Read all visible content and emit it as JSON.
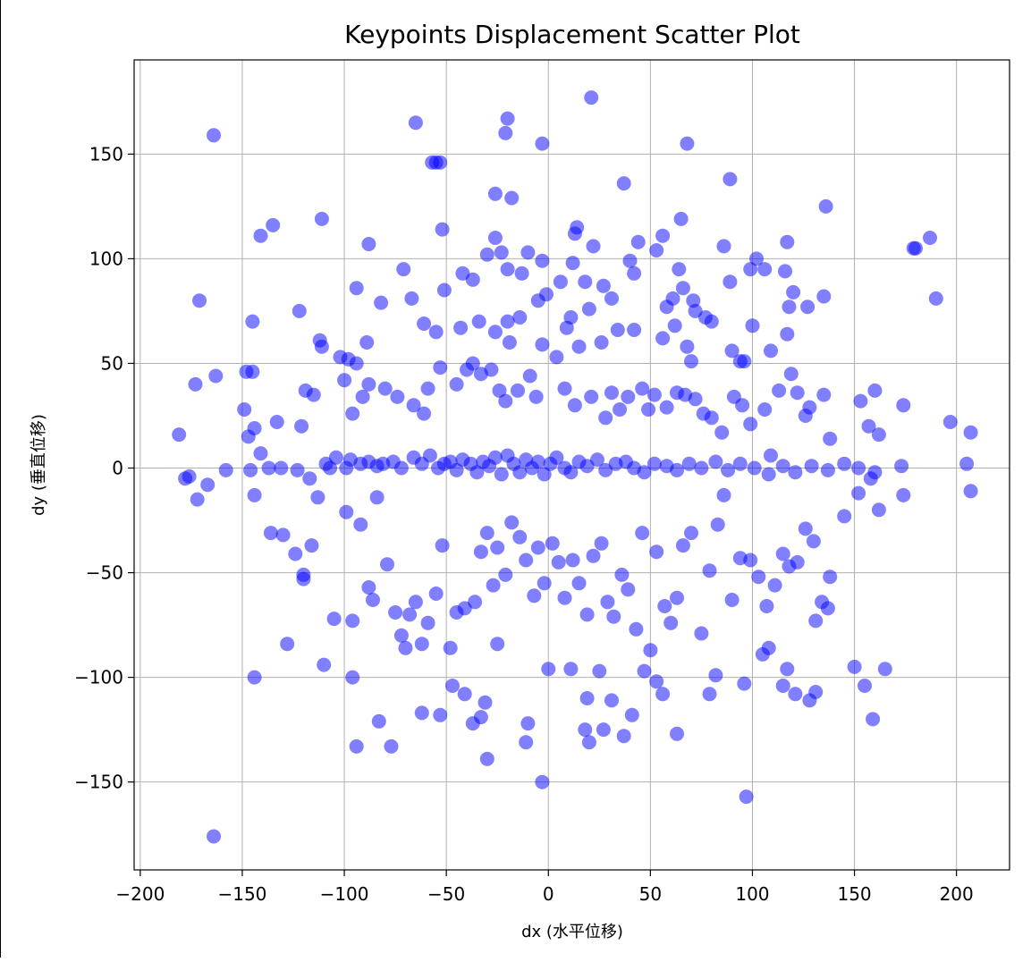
{
  "chart_data": {
    "type": "scatter",
    "title": "Keypoints Displacement Scatter Plot",
    "xlabel": "dx (水平位移)",
    "ylabel": "dy (垂直位移)",
    "xlim": [
      -203,
      226
    ],
    "ylim": [
      -192,
      195
    ],
    "xticks": [
      -200,
      -150,
      -100,
      -50,
      0,
      50,
      100,
      150,
      200
    ],
    "yticks": [
      -150,
      -100,
      -50,
      0,
      50,
      100,
      150
    ],
    "xtick_labels": [
      "−200",
      "−150",
      "−100",
      "−50",
      "0",
      "50",
      "100",
      "150",
      "200"
    ],
    "ytick_labels": [
      "−150",
      "−100",
      "−50",
      "0",
      "50",
      "100",
      "150"
    ],
    "grid": true,
    "marker_color": "#0000ff",
    "marker_alpha": 0.5,
    "points": [
      [
        -164,
        159
      ],
      [
        -65,
        165
      ],
      [
        -20,
        167
      ],
      [
        -21,
        160
      ],
      [
        -3,
        155
      ],
      [
        21,
        177
      ],
      [
        -57,
        146
      ],
      [
        -55,
        146
      ],
      [
        -53,
        146
      ],
      [
        -26,
        131
      ],
      [
        -18,
        129
      ],
      [
        37,
        136
      ],
      [
        68,
        155
      ],
      [
        89,
        138
      ],
      [
        136,
        125
      ],
      [
        -111,
        119
      ],
      [
        -135,
        116
      ],
      [
        -141,
        111
      ],
      [
        -88,
        107
      ],
      [
        -52,
        114
      ],
      [
        14,
        115
      ],
      [
        13,
        112
      ],
      [
        22,
        106
      ],
      [
        44,
        108
      ],
      [
        56,
        111
      ],
      [
        65,
        119
      ],
      [
        117,
        108
      ],
      [
        135,
        82
      ],
      [
        187,
        110
      ],
      [
        179,
        105
      ],
      [
        180,
        105
      ],
      [
        190,
        81
      ],
      [
        -171,
        80
      ],
      [
        -122,
        75
      ],
      [
        -94,
        86
      ],
      [
        -71,
        95
      ],
      [
        -67,
        81
      ],
      [
        -51,
        85
      ],
      [
        -42,
        93
      ],
      [
        -37,
        90
      ],
      [
        -26,
        110
      ],
      [
        -30,
        102
      ],
      [
        -23,
        103
      ],
      [
        -20,
        95
      ],
      [
        -13,
        93
      ],
      [
        -10,
        103
      ],
      [
        -3,
        99
      ],
      [
        -1,
        83
      ],
      [
        -5,
        80
      ],
      [
        6,
        89
      ],
      [
        12,
        98
      ],
      [
        18,
        89
      ],
      [
        27,
        87
      ],
      [
        20,
        76
      ],
      [
        31,
        81
      ],
      [
        40,
        99
      ],
      [
        42,
        93
      ],
      [
        53,
        104
      ],
      [
        58,
        77
      ],
      [
        61,
        81
      ],
      [
        64,
        95
      ],
      [
        66,
        86
      ],
      [
        71,
        80
      ],
      [
        72,
        75
      ],
      [
        77,
        72
      ],
      [
        80,
        70
      ],
      [
        86,
        106
      ],
      [
        89,
        89
      ],
      [
        96,
        51
      ],
      [
        99,
        95
      ],
      [
        102,
        100
      ],
      [
        106,
        95
      ],
      [
        116,
        94
      ],
      [
        118,
        77
      ],
      [
        120,
        84
      ],
      [
        127,
        77
      ],
      [
        -145,
        70
      ],
      [
        -112,
        61
      ],
      [
        -111,
        58
      ],
      [
        -89,
        60
      ],
      [
        -82,
        79
      ],
      [
        -61,
        69
      ],
      [
        -55,
        65
      ],
      [
        -43,
        67
      ],
      [
        -37,
        50
      ],
      [
        -34,
        70
      ],
      [
        -26,
        65
      ],
      [
        -20,
        70
      ],
      [
        -14,
        72
      ],
      [
        -19,
        60
      ],
      [
        -3,
        59
      ],
      [
        4,
        53
      ],
      [
        9,
        67
      ],
      [
        11,
        72
      ],
      [
        15,
        58
      ],
      [
        26,
        60
      ],
      [
        34,
        66
      ],
      [
        42,
        66
      ],
      [
        56,
        62
      ],
      [
        62,
        68
      ],
      [
        68,
        58
      ],
      [
        70,
        51
      ],
      [
        90,
        56
      ],
      [
        94,
        51
      ],
      [
        100,
        68
      ],
      [
        109,
        56
      ],
      [
        117,
        64
      ],
      [
        -148,
        46
      ],
      [
        -163,
        44
      ],
      [
        -173,
        40
      ],
      [
        -145,
        46
      ],
      [
        -144,
        19
      ],
      [
        -147,
        15
      ],
      [
        -149,
        28
      ],
      [
        -141,
        7
      ],
      [
        -137,
        0
      ],
      [
        -133,
        22
      ],
      [
        -119,
        37
      ],
      [
        -115,
        35
      ],
      [
        -121,
        20
      ],
      [
        -102,
        53
      ],
      [
        -100,
        42
      ],
      [
        -98,
        52
      ],
      [
        -96,
        26
      ],
      [
        -94,
        50
      ],
      [
        -91,
        34
      ],
      [
        -88,
        40
      ],
      [
        -80,
        38
      ],
      [
        -74,
        34
      ],
      [
        -66,
        30
      ],
      [
        -61,
        26
      ],
      [
        -59,
        38
      ],
      [
        -53,
        48
      ],
      [
        -45,
        40
      ],
      [
        -40,
        47
      ],
      [
        -33,
        45
      ],
      [
        -28,
        47
      ],
      [
        -24,
        37
      ],
      [
        -21,
        32
      ],
      [
        -15,
        37
      ],
      [
        -9,
        44
      ],
      [
        -6,
        34
      ],
      [
        8,
        38
      ],
      [
        13,
        30
      ],
      [
        21,
        34
      ],
      [
        28,
        24
      ],
      [
        31,
        36
      ],
      [
        35,
        28
      ],
      [
        39,
        34
      ],
      [
        46,
        38
      ],
      [
        49,
        28
      ],
      [
        52,
        35
      ],
      [
        58,
        29
      ],
      [
        63,
        36
      ],
      [
        67,
        35
      ],
      [
        72,
        33
      ],
      [
        76,
        26
      ],
      [
        80,
        24
      ],
      [
        85,
        17
      ],
      [
        91,
        34
      ],
      [
        95,
        30
      ],
      [
        99,
        21
      ],
      [
        106,
        28
      ],
      [
        109,
        6
      ],
      [
        113,
        37
      ],
      [
        119,
        45
      ],
      [
        122,
        36
      ],
      [
        126,
        25
      ],
      [
        128,
        29
      ],
      [
        135,
        35
      ],
      [
        138,
        14
      ],
      [
        153,
        32
      ],
      [
        157,
        20
      ],
      [
        160,
        37
      ],
      [
        162,
        16
      ],
      [
        174,
        30
      ],
      [
        197,
        22
      ],
      [
        207,
        17
      ],
      [
        -181,
        16
      ],
      [
        -176,
        -4
      ],
      [
        -178,
        -5
      ],
      [
        -158,
        -1
      ],
      [
        -146,
        -1
      ],
      [
        -131,
        0
      ],
      [
        -123,
        -1
      ],
      [
        -117,
        -5
      ],
      [
        -109,
        2
      ],
      [
        -107,
        0
      ],
      [
        -104,
        5
      ],
      [
        -99,
        0
      ],
      [
        -97,
        4
      ],
      [
        -92,
        2
      ],
      [
        -88,
        3
      ],
      [
        -84,
        1
      ],
      [
        -81,
        2
      ],
      [
        -76,
        3
      ],
      [
        -72,
        0
      ],
      [
        -66,
        5
      ],
      [
        -62,
        2
      ],
      [
        -58,
        6
      ],
      [
        -54,
        0
      ],
      [
        -51,
        2
      ],
      [
        -48,
        3
      ],
      [
        -45,
        -1
      ],
      [
        -42,
        4
      ],
      [
        -38,
        2
      ],
      [
        -35,
        -2
      ],
      [
        -32,
        3
      ],
      [
        -29,
        1
      ],
      [
        -26,
        5
      ],
      [
        -23,
        -3
      ],
      [
        -20,
        6
      ],
      [
        -17,
        2
      ],
      [
        -14,
        -2
      ],
      [
        -11,
        4
      ],
      [
        -8,
        0
      ],
      [
        -5,
        3
      ],
      [
        -2,
        -3
      ],
      [
        1,
        2
      ],
      [
        4,
        5
      ],
      [
        8,
        0
      ],
      [
        11,
        -2
      ],
      [
        15,
        3
      ],
      [
        19,
        1
      ],
      [
        24,
        4
      ],
      [
        28,
        -1
      ],
      [
        33,
        2
      ],
      [
        38,
        3
      ],
      [
        42,
        0
      ],
      [
        47,
        -2
      ],
      [
        52,
        2
      ],
      [
        58,
        1
      ],
      [
        63,
        -1
      ],
      [
        69,
        2
      ],
      [
        75,
        0
      ],
      [
        82,
        3
      ],
      [
        88,
        -1
      ],
      [
        94,
        2
      ],
      [
        101,
        0
      ],
      [
        108,
        -3
      ],
      [
        115,
        1
      ],
      [
        121,
        -2
      ],
      [
        129,
        1
      ],
      [
        137,
        -1
      ],
      [
        145,
        2
      ],
      [
        152,
        0
      ],
      [
        160,
        -2
      ],
      [
        173,
        1
      ],
      [
        205,
        2
      ],
      [
        -172,
        -15
      ],
      [
        -167,
        -8
      ],
      [
        -144,
        -13
      ],
      [
        -136,
        -31
      ],
      [
        -130,
        -32
      ],
      [
        -124,
        -41
      ],
      [
        -120,
        -53
      ],
      [
        -116,
        -37
      ],
      [
        -113,
        -14
      ],
      [
        -105,
        -72
      ],
      [
        -99,
        -21
      ],
      [
        -96,
        -73
      ],
      [
        -92,
        -27
      ],
      [
        -88,
        -57
      ],
      [
        -86,
        -63
      ],
      [
        -84,
        -14
      ],
      [
        -79,
        -46
      ],
      [
        -75,
        -69
      ],
      [
        -72,
        -80
      ],
      [
        -68,
        -70
      ],
      [
        -65,
        -64
      ],
      [
        -62,
        -84
      ],
      [
        -59,
        -74
      ],
      [
        -55,
        -60
      ],
      [
        -52,
        -37
      ],
      [
        -48,
        -86
      ],
      [
        -45,
        -69
      ],
      [
        -41,
        -67
      ],
      [
        -36,
        -64
      ],
      [
        -33,
        -40
      ],
      [
        -30,
        -31
      ],
      [
        -27,
        -56
      ],
      [
        -25,
        -38
      ],
      [
        -21,
        -51
      ],
      [
        -18,
        -26
      ],
      [
        -14,
        -33
      ],
      [
        -11,
        -44
      ],
      [
        -7,
        -61
      ],
      [
        -5,
        -38
      ],
      [
        -2,
        -55
      ],
      [
        2,
        -36
      ],
      [
        5,
        -45
      ],
      [
        8,
        -62
      ],
      [
        12,
        -44
      ],
      [
        15,
        -55
      ],
      [
        19,
        -70
      ],
      [
        22,
        -42
      ],
      [
        26,
        -36
      ],
      [
        29,
        -64
      ],
      [
        32,
        -71
      ],
      [
        36,
        -51
      ],
      [
        39,
        -58
      ],
      [
        43,
        -77
      ],
      [
        46,
        -31
      ],
      [
        50,
        -87
      ],
      [
        53,
        -40
      ],
      [
        57,
        -66
      ],
      [
        60,
        -74
      ],
      [
        63,
        -62
      ],
      [
        66,
        -37
      ],
      [
        70,
        -31
      ],
      [
        75,
        -79
      ],
      [
        79,
        -49
      ],
      [
        83,
        -27
      ],
      [
        86,
        -13
      ],
      [
        90,
        -63
      ],
      [
        94,
        -43
      ],
      [
        99,
        -44
      ],
      [
        103,
        -52
      ],
      [
        107,
        -66
      ],
      [
        111,
        -56
      ],
      [
        115,
        -41
      ],
      [
        118,
        -47
      ],
      [
        122,
        -45
      ],
      [
        126,
        -29
      ],
      [
        130,
        -35
      ],
      [
        134,
        -64
      ],
      [
        138,
        -52
      ],
      [
        145,
        -23
      ],
      [
        152,
        -12
      ],
      [
        158,
        -5
      ],
      [
        162,
        -20
      ],
      [
        174,
        -13
      ],
      [
        207,
        -11
      ],
      [
        -164,
        -176
      ],
      [
        -144,
        -100
      ],
      [
        -128,
        -84
      ],
      [
        -120,
        -51
      ],
      [
        -110,
        -94
      ],
      [
        -96,
        -100
      ],
      [
        -94,
        -133
      ],
      [
        -83,
        -121
      ],
      [
        -77,
        -133
      ],
      [
        -70,
        -86
      ],
      [
        -62,
        -117
      ],
      [
        -53,
        -118
      ],
      [
        -47,
        -104
      ],
      [
        -41,
        -108
      ],
      [
        -37,
        -122
      ],
      [
        -33,
        -119
      ],
      [
        -31,
        -112
      ],
      [
        -30,
        -139
      ],
      [
        -25,
        -84
      ],
      [
        -10,
        -122
      ],
      [
        -11,
        -131
      ],
      [
        -3,
        -150
      ],
      [
        0,
        -96
      ],
      [
        11,
        -96
      ],
      [
        19,
        -110
      ],
      [
        18,
        -125
      ],
      [
        20,
        -131
      ],
      [
        27,
        -125
      ],
      [
        25,
        -97
      ],
      [
        31,
        -111
      ],
      [
        37,
        -128
      ],
      [
        41,
        -118
      ],
      [
        47,
        -97
      ],
      [
        53,
        -102
      ],
      [
        56,
        -108
      ],
      [
        63,
        -127
      ],
      [
        79,
        -108
      ],
      [
        82,
        -99
      ],
      [
        96,
        -103
      ],
      [
        97,
        -157
      ],
      [
        105,
        -89
      ],
      [
        108,
        -86
      ],
      [
        115,
        -104
      ],
      [
        117,
        -96
      ],
      [
        121,
        -108
      ],
      [
        128,
        -111
      ],
      [
        131,
        -107
      ],
      [
        131,
        -73
      ],
      [
        137,
        -67
      ],
      [
        150,
        -95
      ],
      [
        155,
        -104
      ],
      [
        159,
        -120
      ],
      [
        165,
        -96
      ]
    ]
  }
}
